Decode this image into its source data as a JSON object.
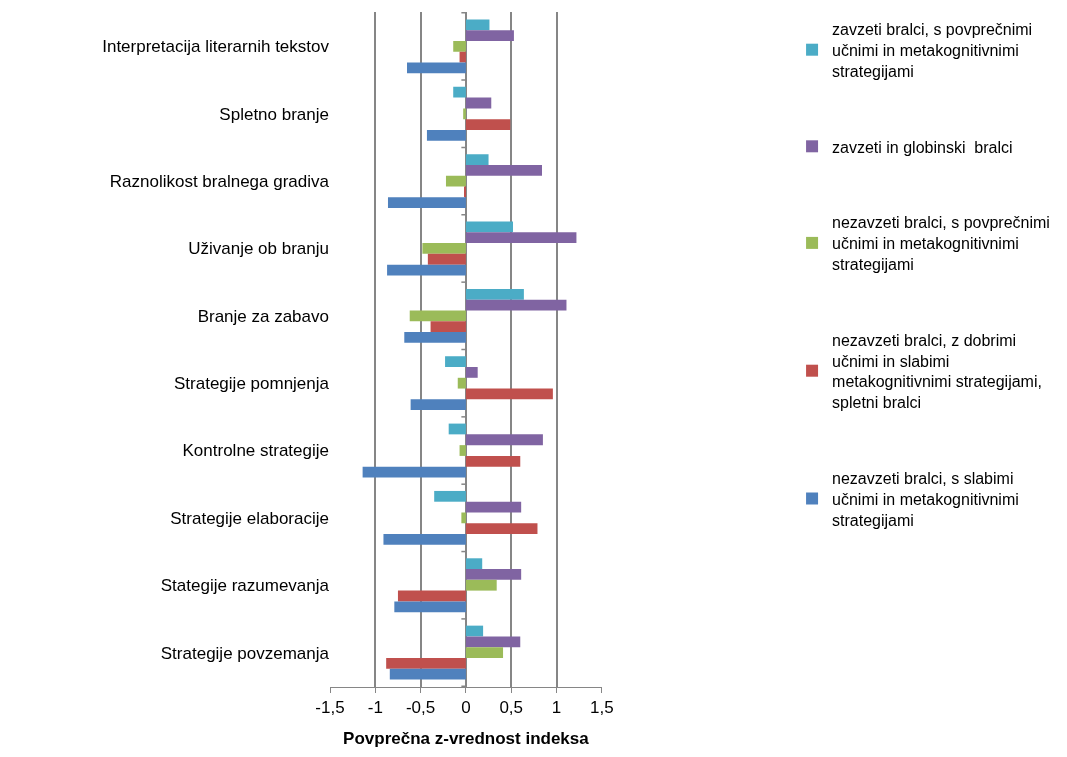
{
  "chart_data": {
    "type": "bar",
    "orientation": "horizontal",
    "xlabel": "Povprečna z-vrednost indeksa",
    "categories": [
      "Interpretacija literarnih tekstov",
      "Spletno branje",
      "Raznolikost bralnega gradiva",
      "Uživanje ob branju",
      "Branje za zabavo",
      "Strategije pomnjenja",
      "Kontrolne strategije",
      "Strategije elaboracije",
      "Stategije razumevanja",
      "Strategije povzemanja"
    ],
    "series": [
      {
        "name": "zavzeti bralci, s povprečnimi učnimi in metakognitivnimi strategijami",
        "color": "#4bacc6",
        "values": [
          0.26,
          -0.14,
          0.25,
          0.52,
          0.64,
          -0.23,
          -0.19,
          -0.35,
          0.18,
          0.19
        ]
      },
      {
        "name": "zavzeti in globinski  bralci",
        "color": "#8064a2",
        "values": [
          0.53,
          0.28,
          0.84,
          1.22,
          1.11,
          0.13,
          0.85,
          0.61,
          0.61,
          0.6
        ]
      },
      {
        "name": "nezavzeti bralci, s povprečnimi učnimi in metakognitivnimi strategijami",
        "color": "#9bbb59",
        "values": [
          -0.14,
          -0.03,
          -0.22,
          -0.48,
          -0.62,
          -0.09,
          -0.07,
          -0.05,
          0.34,
          0.41
        ]
      },
      {
        "name": "nezavzeti bralci, z dobrimi učnimi in slabimi metakognitivnimi strategijami, spletni bralci",
        "color": "#c0504d",
        "values": [
          -0.07,
          0.49,
          -0.02,
          -0.42,
          -0.39,
          0.96,
          0.6,
          0.79,
          -0.75,
          -0.88
        ]
      },
      {
        "name": "nezavzeti bralci, s slabimi učnimi in metakognitivnimi strategijami",
        "color": "#4f81bd",
        "values": [
          -0.65,
          -0.43,
          -0.86,
          -0.87,
          -0.68,
          -0.61,
          -1.14,
          -0.91,
          -0.79,
          -0.84
        ]
      }
    ],
    "xlim": [
      -1.5,
      1.5
    ],
    "xticks": [
      {
        "value": -1.5,
        "label": "-1,5"
      },
      {
        "value": -1,
        "label": "-1"
      },
      {
        "value": -0.5,
        "label": "-0,5"
      },
      0,
      {
        "value": 0.5,
        "label": "0,5"
      },
      1,
      {
        "value": 1.5,
        "label": "1,5"
      }
    ],
    "grid": "x",
    "legend": "right"
  }
}
